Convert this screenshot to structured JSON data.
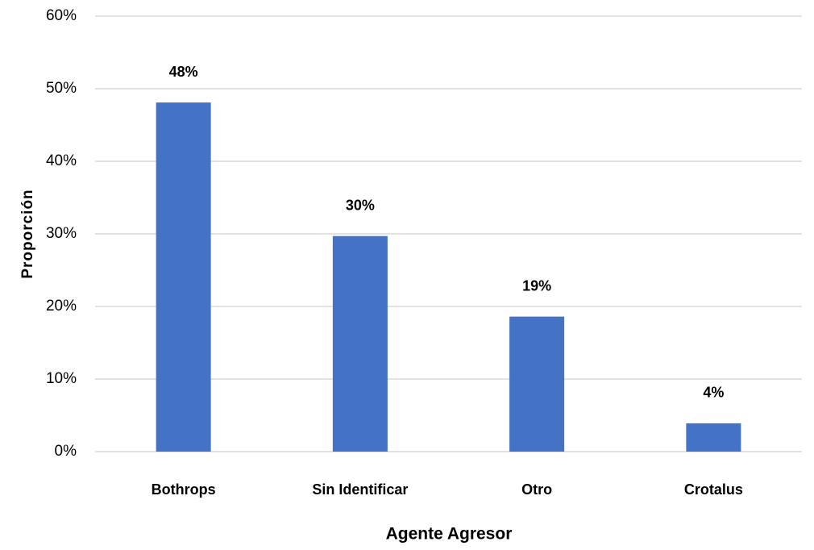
{
  "chart_data": {
    "type": "bar",
    "categories": [
      "Bothrops",
      "Sin Identificar",
      "Otro",
      "Crotalus"
    ],
    "values": [
      48.1,
      29.7,
      18.6,
      3.9
    ],
    "value_labels": [
      "48%",
      "30%",
      "19%",
      "4%"
    ],
    "color": "#4472c4",
    "xlabel": "Agente Agresor",
    "ylabel": "Proporción",
    "ylim": [
      0,
      60
    ],
    "yticks": [
      {
        "value": 0,
        "label": "0%"
      },
      {
        "value": 10,
        "label": "10%"
      },
      {
        "value": 20,
        "label": "20%"
      },
      {
        "value": 30,
        "label": "30%"
      },
      {
        "value": 40,
        "label": "40%"
      },
      {
        "value": 50,
        "label": "50%"
      },
      {
        "value": 60,
        "label": "60%"
      }
    ],
    "grid": true
  }
}
